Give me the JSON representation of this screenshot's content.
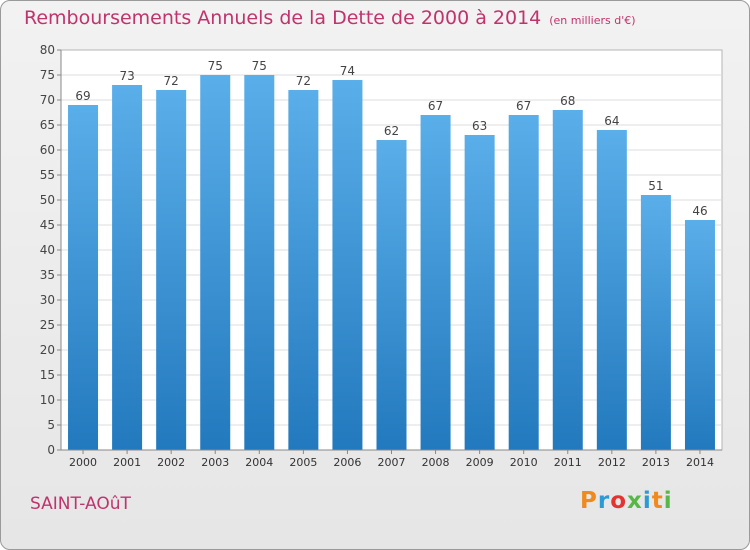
{
  "title": "Remboursements Annuels de la Dette de 2000 à 2014",
  "title_unit": "(en milliers d'€)",
  "city": "SAINT-AOûT",
  "logo": {
    "letters": [
      "P",
      "r",
      "o",
      "x",
      "i",
      "t",
      "i"
    ],
    "colors": [
      "#f08a1e",
      "#2b9bd6",
      "#e3342f",
      "#57b847",
      "#2b9bd6",
      "#f08a1e",
      "#57b847"
    ]
  },
  "colors": {
    "accent": "#c0336d",
    "bar_top": "#5aaee9",
    "bar_bottom": "#2279bd"
  },
  "chart_data": {
    "type": "bar",
    "categories": [
      "2000",
      "2001",
      "2002",
      "2003",
      "2004",
      "2005",
      "2006",
      "2007",
      "2008",
      "2009",
      "2010",
      "2011",
      "2012",
      "2013",
      "2014"
    ],
    "values": [
      69,
      73,
      72,
      75,
      75,
      72,
      74,
      62,
      67,
      63,
      67,
      68,
      64,
      51,
      46
    ],
    "ylim": [
      0,
      80
    ],
    "yticks": [
      0,
      5,
      10,
      15,
      20,
      25,
      30,
      35,
      40,
      45,
      50,
      55,
      60,
      65,
      70,
      75,
      80
    ],
    "grid": true,
    "xlabel": "",
    "ylabel": ""
  }
}
